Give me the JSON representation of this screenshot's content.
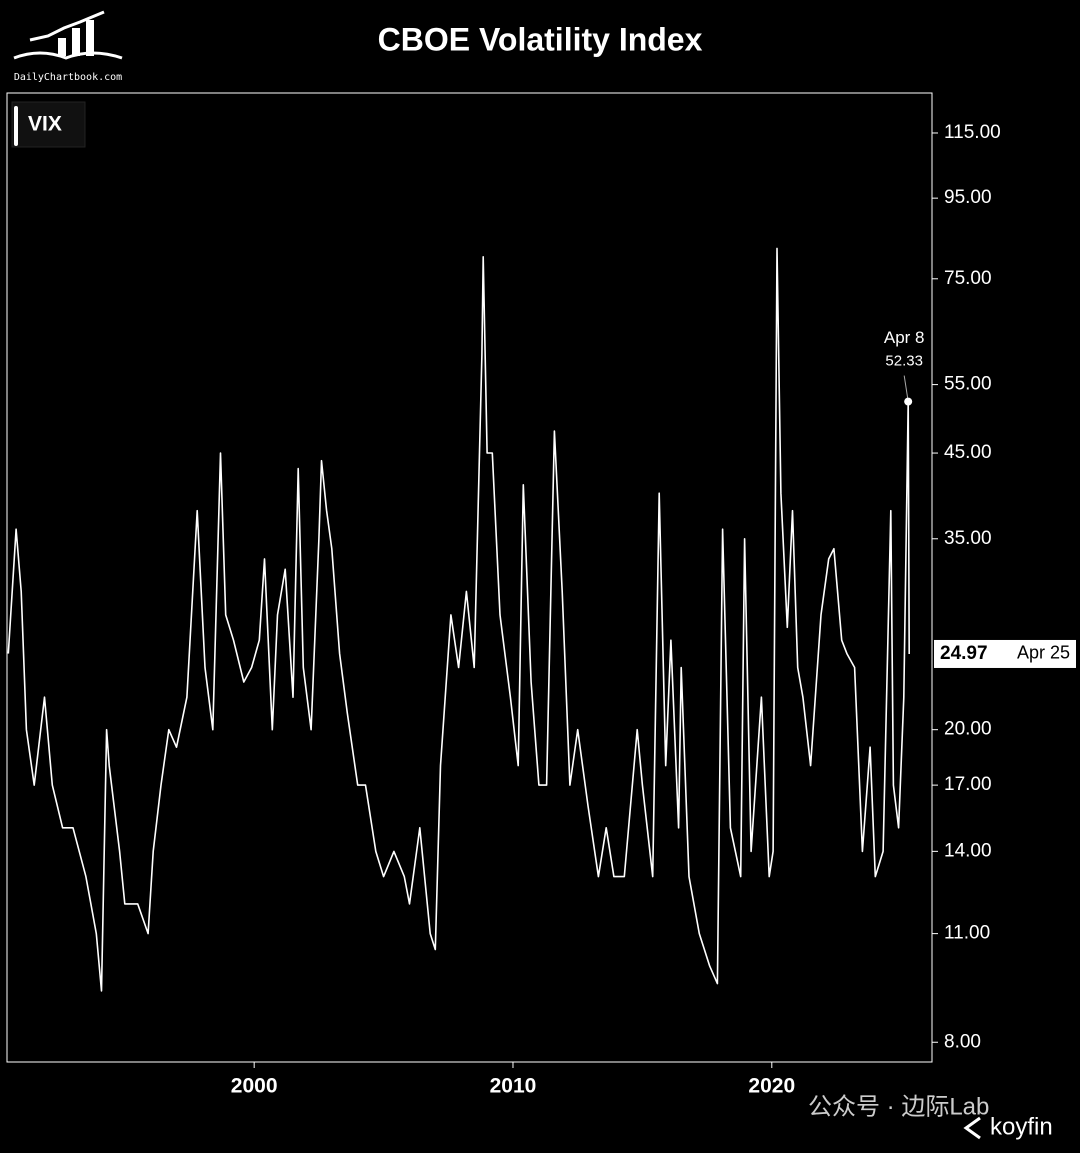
{
  "chart_data": {
    "type": "line",
    "title": "CBOE Volatility Index",
    "source": "DailyChartbook.com",
    "watermarks": [
      "公众号 · 边际Lab",
      "koyfin"
    ],
    "log_scale": true,
    "x": [
      1990.5,
      1990.8,
      1991.0,
      1991.2,
      1991.5,
      1991.9,
      1992.2,
      1992.6,
      1993.0,
      1993.5,
      1993.9,
      1994.1,
      1994.3,
      1994.4,
      1994.8,
      1995.0,
      1995.5,
      1995.9,
      1996.1,
      1996.4,
      1996.7,
      1997.0,
      1997.4,
      1997.8,
      1998.1,
      1998.4,
      1998.7,
      1998.9,
      1999.2,
      1999.6,
      1999.9,
      2000.2,
      2000.4,
      2000.7,
      2000.9,
      2001.2,
      2001.5,
      2001.7,
      2001.9,
      2002.2,
      2002.5,
      2002.6,
      2002.8,
      2003.0,
      2003.3,
      2003.6,
      2004.0,
      2004.3,
      2004.7,
      2005.0,
      2005.4,
      2005.8,
      2006.0,
      2006.4,
      2006.8,
      2007.0,
      2007.2,
      2007.6,
      2007.9,
      2008.2,
      2008.5,
      2008.8,
      2008.85,
      2009.0,
      2009.2,
      2009.5,
      2009.9,
      2010.2,
      2010.4,
      2010.7,
      2011.0,
      2011.3,
      2011.6,
      2011.9,
      2012.2,
      2012.5,
      2012.9,
      2013.3,
      2013.6,
      2013.9,
      2014.3,
      2014.8,
      2015.0,
      2015.4,
      2015.65,
      2015.9,
      2016.1,
      2016.4,
      2016.5,
      2016.8,
      2017.2,
      2017.6,
      2017.9,
      2018.1,
      2018.4,
      2018.8,
      2018.95,
      2019.2,
      2019.6,
      2019.9,
      2020.05,
      2020.2,
      2020.35,
      2020.6,
      2020.8,
      2021.0,
      2021.2,
      2021.5,
      2021.9,
      2022.2,
      2022.4,
      2022.7,
      2022.9,
      2023.2,
      2023.5,
      2023.8,
      2024.0,
      2024.3,
      2024.6,
      2024.7,
      2024.9,
      2025.1,
      2025.27,
      2025.31
    ],
    "series": [
      {
        "name": "VIX",
        "color": "#ffffff",
        "values": [
          25,
          36,
          30,
          20,
          17,
          22,
          17,
          15,
          15,
          13,
          11,
          9.3,
          20,
          18,
          14,
          12,
          12,
          11,
          14,
          17,
          20,
          19,
          22,
          38,
          24,
          20,
          45,
          28,
          26,
          23,
          24,
          26,
          33,
          20,
          28,
          32,
          22,
          43,
          24,
          20,
          35,
          44,
          38,
          34,
          25,
          21,
          17,
          17,
          14,
          13,
          14,
          13,
          12,
          15,
          11,
          10.5,
          18,
          28,
          24,
          30,
          24,
          60,
          80,
          45,
          45,
          28,
          22,
          18,
          41,
          23,
          17,
          17,
          48,
          30,
          17,
          20,
          16,
          13,
          15,
          13,
          13,
          20,
          17,
          13,
          40,
          18,
          26,
          15,
          24,
          13,
          11,
          10,
          9.5,
          36,
          15,
          13,
          35,
          14,
          22,
          13,
          14,
          82,
          40,
          27,
          38,
          24,
          22,
          18,
          28,
          33,
          34,
          26,
          25,
          24,
          14,
          19,
          13,
          14,
          38,
          17,
          15,
          22,
          52.33,
          24.97
        ]
      }
    ],
    "annotations": [
      {
        "text": "Apr 8",
        "value": 52.33
      }
    ],
    "last_label": {
      "value": 24.97,
      "text": "Apr 25"
    },
    "xlim": [
      1990.45,
      2026.19
    ],
    "xticks": [
      2000,
      2010,
      2020
    ],
    "ylim": [
      7.55,
      129.3
    ],
    "yticks": [
      {
        "value": 115,
        "label": "115.00"
      },
      {
        "value": 95,
        "label": "95.00"
      },
      {
        "value": 75,
        "label": "75.00"
      },
      {
        "value": 55,
        "label": "55.00"
      },
      {
        "value": 45,
        "label": "45.00"
      },
      {
        "value": 35,
        "label": "35.00"
      },
      {
        "value": 20,
        "label": "20.00"
      },
      {
        "value": 17,
        "label": "17.00"
      },
      {
        "value": 14,
        "label": "14.00"
      },
      {
        "value": 11,
        "label": "11.00"
      },
      {
        "value": 8,
        "label": "8.00"
      }
    ]
  }
}
